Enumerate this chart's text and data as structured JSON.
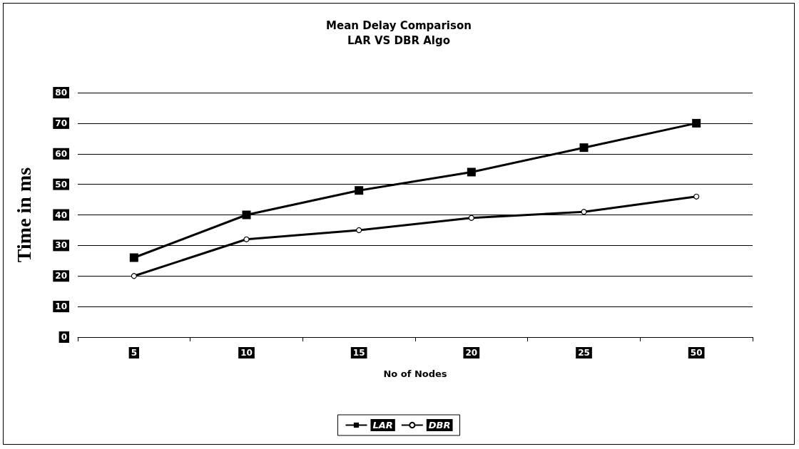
{
  "chart_data": {
    "type": "line",
    "title": "Mean Delay Comparison",
    "subtitle": "LAR VS DBR Algo",
    "xlabel": "No of Nodes",
    "ylabel": "Time in ms",
    "categories": [
      "5",
      "10",
      "15",
      "20",
      "25",
      "50"
    ],
    "series": [
      {
        "name": "LAR",
        "color": "#000000",
        "marker": "square",
        "values": [
          26,
          40,
          48,
          54,
          62,
          70
        ]
      },
      {
        "name": "DBR",
        "color": "#000000",
        "marker": "circle",
        "values": [
          20,
          32,
          35,
          39,
          41,
          46
        ]
      }
    ],
    "ylim": [
      0,
      80
    ],
    "yticks": [
      0,
      10,
      20,
      30,
      40,
      50,
      60,
      70,
      80
    ],
    "grid": "y",
    "legend": "bottom",
    "line_style": "solid"
  }
}
